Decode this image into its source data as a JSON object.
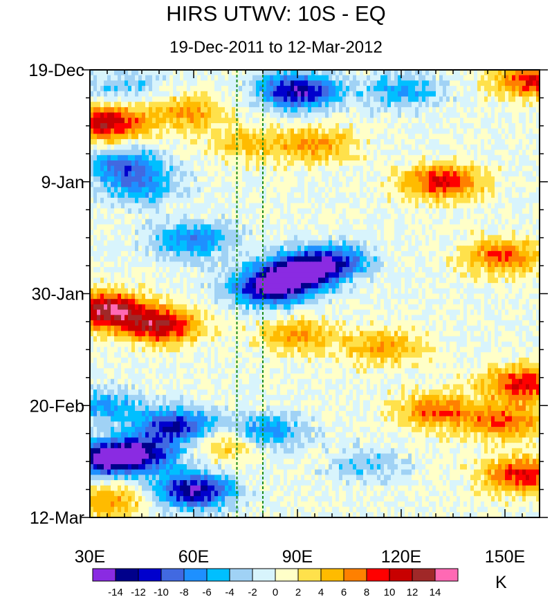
{
  "chart_data": {
    "type": "heatmap",
    "title": "HIRS UTWV: 10S - EQ",
    "subtitle": "19-Dec-2011 to 12-Mar-2012",
    "x_ticks": [
      {
        "value": 30,
        "label": "30E"
      },
      {
        "value": 60,
        "label": "60E"
      },
      {
        "value": 90,
        "label": "90E"
      },
      {
        "value": 120,
        "label": "120E"
      },
      {
        "value": 150,
        "label": "150E"
      }
    ],
    "xlim": [
      30,
      160
    ],
    "y_ticks": [
      {
        "value": 0,
        "label": "19-Dec"
      },
      {
        "value": 21,
        "label": "9-Jan"
      },
      {
        "value": 42,
        "label": "30-Jan"
      },
      {
        "value": 63,
        "label": "20-Feb"
      },
      {
        "value": 84,
        "label": "12-Mar"
      }
    ],
    "ylim_days": [
      0,
      84
    ],
    "reference_lines_lon": [
      72.5,
      80
    ],
    "reference_line_color": "#1a8c1a",
    "colorbar": {
      "labels": [
        "-14",
        "-12",
        "-10",
        "-8",
        "-6",
        "-4",
        "-2",
        "0",
        "2",
        "4",
        "6",
        "8",
        "10",
        "12",
        "14"
      ],
      "colors": [
        "#8a2be2",
        "#00008b",
        "#0000cd",
        "#4169e1",
        "#1e90ff",
        "#00bfff",
        "#a0d2f5",
        "#d8f4fc",
        "#ffffc8",
        "#ffe14b",
        "#ffbb00",
        "#ff8000",
        "#ff0000",
        "#c80000",
        "#a02828",
        "#ff69b4"
      ],
      "units": "K"
    },
    "anomaly_features": [
      {
        "lon": 35,
        "day": 10,
        "value": 12
      },
      {
        "lon": 58,
        "day": 8,
        "value": 6
      },
      {
        "lon": 75,
        "day": 14,
        "value": 4
      },
      {
        "lon": 95,
        "day": 14,
        "value": 6
      },
      {
        "lon": 132,
        "day": 21,
        "value": 10
      },
      {
        "lon": 150,
        "day": 35,
        "value": 8
      },
      {
        "lon": 158,
        "day": 2,
        "value": 10
      },
      {
        "lon": 35,
        "day": 45,
        "value": 14
      },
      {
        "lon": 50,
        "day": 48,
        "value": 12
      },
      {
        "lon": 90,
        "day": 50,
        "value": 6
      },
      {
        "lon": 115,
        "day": 52,
        "value": 6
      },
      {
        "lon": 155,
        "day": 59,
        "value": 10
      },
      {
        "lon": 130,
        "day": 64,
        "value": 8
      },
      {
        "lon": 150,
        "day": 66,
        "value": 8
      },
      {
        "lon": 70,
        "day": 70,
        "value": 6
      },
      {
        "lon": 155,
        "day": 76,
        "value": 10
      },
      {
        "lon": 36,
        "day": 81,
        "value": 6
      },
      {
        "lon": 40,
        "day": 3,
        "value": -4
      },
      {
        "lon": 90,
        "day": 4,
        "value": -14
      },
      {
        "lon": 120,
        "day": 4,
        "value": -6
      },
      {
        "lon": 40,
        "day": 18,
        "value": -8
      },
      {
        "lon": 45,
        "day": 22,
        "value": -6
      },
      {
        "lon": 60,
        "day": 32,
        "value": -8
      },
      {
        "lon": 90,
        "day": 38,
        "value": -14
      },
      {
        "lon": 100,
        "day": 36,
        "value": -10
      },
      {
        "lon": 82,
        "day": 41,
        "value": -14
      },
      {
        "lon": 34,
        "day": 63,
        "value": -6
      },
      {
        "lon": 55,
        "day": 67,
        "value": -12
      },
      {
        "lon": 35,
        "day": 73,
        "value": -14
      },
      {
        "lon": 45,
        "day": 72,
        "value": -10
      },
      {
        "lon": 60,
        "day": 79,
        "value": -14
      },
      {
        "lon": 80,
        "day": 68,
        "value": -8
      },
      {
        "lon": 110,
        "day": 74,
        "value": -4
      }
    ]
  }
}
